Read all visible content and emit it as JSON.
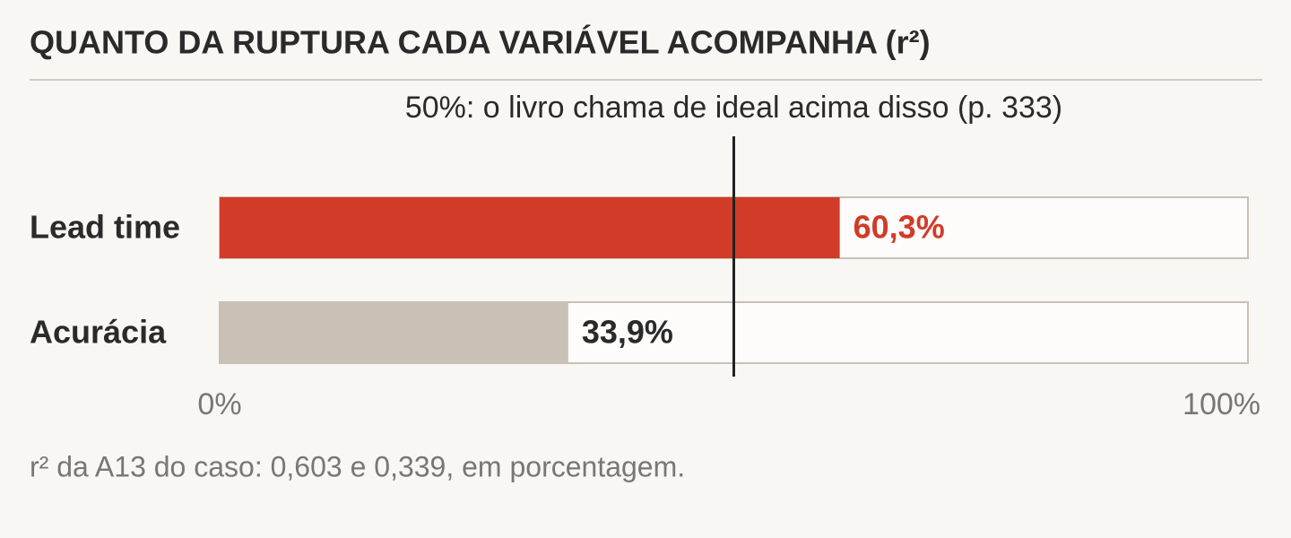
{
  "chart_data": {
    "type": "bar",
    "orientation": "horizontal",
    "title": "QUANTO DA RUPTURA CADA VARIÁVEL ACOMPANHA (r²)",
    "categories": [
      "Lead time",
      "Acurácia"
    ],
    "values": [
      60.3,
      33.9
    ],
    "value_labels": [
      "60,3%",
      "33,9%"
    ],
    "colors": [
      "#d13b27",
      "#c9c1b6"
    ],
    "value_label_colors": [
      "#d13b27",
      "#2a2a2a"
    ],
    "xlim": [
      0,
      100
    ],
    "xticks": [
      {
        "value": 0,
        "label": "0%"
      },
      {
        "value": 100,
        "label": "100%"
      }
    ],
    "reference_line": {
      "value": 50,
      "label": "50%: o livro chama de ideal acima disso (p. 333)"
    },
    "footnote": "r² da A13 do caso: 0,603 e 0,339, em porcentagem."
  }
}
